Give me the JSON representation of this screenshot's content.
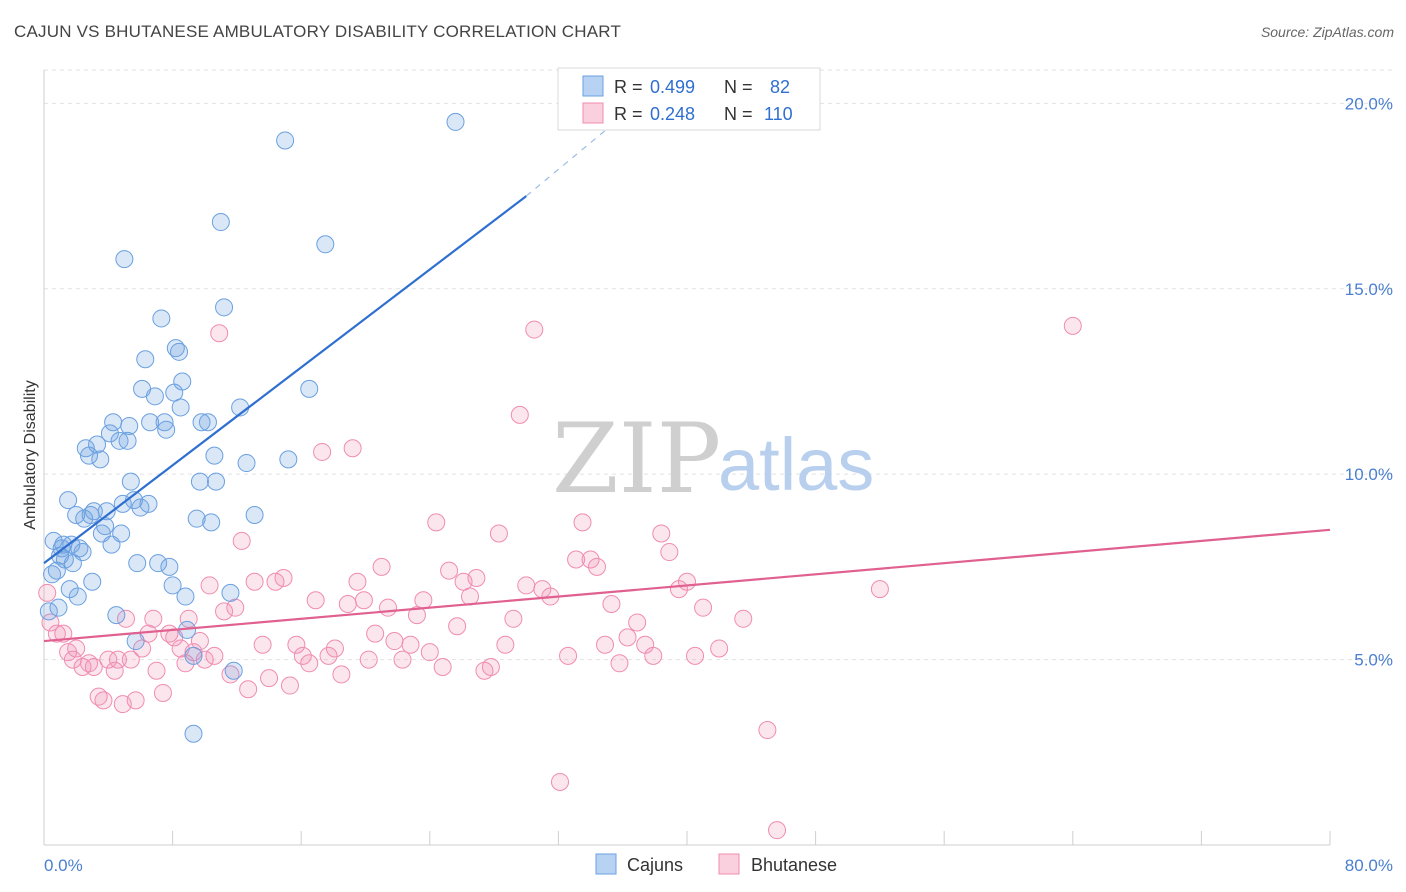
{
  "header": {
    "title": "CAJUN VS BHUTANESE AMBULATORY DISABILITY CORRELATION CHART",
    "source": "Source: ZipAtlas.com"
  },
  "watermark": {
    "zip": "ZIP",
    "atlas": "atlas"
  },
  "legend": {
    "cajun": {
      "r_label": "R =",
      "r_value": "0.499",
      "n_label": "N =",
      "n_value": "82"
    },
    "bhutanese": {
      "r_label": "R =",
      "r_value": "0.248",
      "n_label": "N =",
      "n_value": "110"
    }
  },
  "chart_data": {
    "type": "scatter",
    "title": "CAJUN VS BHUTANESE AMBULATORY DISABILITY CORRELATION CHART",
    "xlabel": "",
    "ylabel": "Ambulatory Disability",
    "xlim": [
      0,
      80
    ],
    "ylim": [
      0,
      20.9
    ],
    "x_tick_labels": [
      "0.0%",
      "80.0%"
    ],
    "y_tick_labels": [
      "5.0%",
      "10.0%",
      "15.0%",
      "20.0%"
    ],
    "y_ticks": [
      5,
      10,
      15,
      20
    ],
    "grid": true,
    "legend_position": "top-center",
    "colors": {
      "cajun": "#6aa0e0",
      "bhutanese": "#f08cb0",
      "cajun_line": "#2f6fd0",
      "bhutanese_line": "#e0608f"
    },
    "series": [
      {
        "name": "Cajuns",
        "r": 0.499,
        "n": 82,
        "trend": {
          "x0": 0.0,
          "y0": 7.6,
          "x1": 30.0,
          "y1": 17.5,
          "dash_to_x": 35.0,
          "dash_to_y": 19.3
        },
        "points": [
          [
            0.3,
            6.3
          ],
          [
            0.5,
            7.3
          ],
          [
            0.6,
            8.2
          ],
          [
            0.8,
            7.4
          ],
          [
            1.0,
            7.8
          ],
          [
            1.1,
            8.0
          ],
          [
            1.3,
            7.7
          ],
          [
            1.5,
            9.3
          ],
          [
            1.6,
            6.9
          ],
          [
            1.7,
            8.1
          ],
          [
            1.8,
            7.6
          ],
          [
            2.0,
            8.9
          ],
          [
            2.1,
            6.7
          ],
          [
            2.2,
            8.0
          ],
          [
            2.4,
            7.9
          ],
          [
            2.6,
            10.7
          ],
          [
            2.8,
            10.5
          ],
          [
            2.9,
            8.9
          ],
          [
            3.0,
            7.1
          ],
          [
            3.1,
            9.0
          ],
          [
            3.3,
            10.8
          ],
          [
            3.5,
            10.4
          ],
          [
            3.6,
            8.4
          ],
          [
            3.8,
            8.6
          ],
          [
            3.9,
            9.0
          ],
          [
            4.1,
            11.1
          ],
          [
            4.2,
            8.1
          ],
          [
            4.3,
            11.4
          ],
          [
            4.5,
            6.2
          ],
          [
            4.7,
            10.9
          ],
          [
            4.8,
            8.4
          ],
          [
            4.9,
            9.2
          ],
          [
            5.0,
            15.8
          ],
          [
            5.2,
            10.9
          ],
          [
            5.3,
            11.3
          ],
          [
            5.4,
            9.8
          ],
          [
            5.6,
            9.3
          ],
          [
            5.7,
            5.5
          ],
          [
            5.8,
            7.6
          ],
          [
            6.0,
            9.1
          ],
          [
            6.1,
            12.3
          ],
          [
            6.3,
            13.1
          ],
          [
            6.5,
            9.2
          ],
          [
            6.6,
            11.4
          ],
          [
            6.9,
            12.1
          ],
          [
            7.1,
            7.6
          ],
          [
            7.3,
            14.2
          ],
          [
            7.5,
            11.4
          ],
          [
            7.6,
            11.2
          ],
          [
            7.8,
            7.5
          ],
          [
            8.0,
            7.0
          ],
          [
            8.1,
            12.2
          ],
          [
            8.2,
            13.4
          ],
          [
            8.4,
            13.3
          ],
          [
            8.5,
            11.8
          ],
          [
            8.6,
            12.5
          ],
          [
            8.8,
            6.7
          ],
          [
            8.9,
            5.8
          ],
          [
            9.3,
            5.1
          ],
          [
            9.5,
            8.8
          ],
          [
            9.7,
            9.8
          ],
          [
            9.8,
            11.4
          ],
          [
            10.2,
            11.4
          ],
          [
            10.4,
            8.7
          ],
          [
            10.6,
            10.5
          ],
          [
            10.7,
            9.8
          ],
          [
            11.0,
            16.8
          ],
          [
            11.2,
            14.5
          ],
          [
            11.6,
            6.8
          ],
          [
            11.8,
            4.7
          ],
          [
            12.2,
            11.8
          ],
          [
            12.6,
            10.3
          ],
          [
            13.1,
            8.9
          ],
          [
            15.0,
            19.0
          ],
          [
            15.2,
            10.4
          ],
          [
            16.5,
            12.3
          ],
          [
            17.5,
            16.2
          ],
          [
            25.6,
            19.5
          ],
          [
            9.3,
            3.0
          ],
          [
            1.2,
            8.1
          ],
          [
            2.5,
            8.8
          ],
          [
            0.9,
            6.4
          ]
        ]
      },
      {
        "name": "Bhutanese",
        "r": 0.248,
        "n": 110,
        "trend": {
          "x0": 0.0,
          "y0": 5.5,
          "x1": 80.0,
          "y1": 8.5
        },
        "points": [
          [
            0.2,
            6.8
          ],
          [
            0.4,
            6.0
          ],
          [
            0.8,
            5.7
          ],
          [
            1.2,
            5.7
          ],
          [
            1.5,
            5.2
          ],
          [
            1.8,
            5.0
          ],
          [
            2.0,
            5.3
          ],
          [
            2.4,
            4.8
          ],
          [
            2.8,
            4.9
          ],
          [
            3.1,
            4.8
          ],
          [
            3.4,
            4.0
          ],
          [
            3.7,
            3.9
          ],
          [
            4.0,
            5.0
          ],
          [
            4.4,
            4.7
          ],
          [
            4.6,
            5.0
          ],
          [
            4.9,
            3.8
          ],
          [
            5.1,
            6.1
          ],
          [
            5.4,
            5.0
          ],
          [
            5.7,
            3.9
          ],
          [
            6.1,
            5.3
          ],
          [
            6.5,
            5.7
          ],
          [
            6.8,
            6.1
          ],
          [
            7.0,
            4.7
          ],
          [
            7.4,
            4.1
          ],
          [
            7.8,
            5.7
          ],
          [
            8.1,
            5.6
          ],
          [
            8.5,
            5.3
          ],
          [
            8.8,
            4.9
          ],
          [
            9.0,
            6.1
          ],
          [
            9.3,
            5.2
          ],
          [
            9.7,
            5.5
          ],
          [
            10.0,
            5.0
          ],
          [
            10.3,
            7.0
          ],
          [
            10.6,
            5.1
          ],
          [
            10.9,
            13.8
          ],
          [
            11.2,
            6.3
          ],
          [
            11.6,
            4.6
          ],
          [
            11.9,
            6.4
          ],
          [
            12.3,
            8.2
          ],
          [
            12.7,
            4.2
          ],
          [
            13.1,
            7.1
          ],
          [
            13.6,
            5.4
          ],
          [
            14.0,
            4.5
          ],
          [
            14.4,
            7.1
          ],
          [
            14.9,
            7.2
          ],
          [
            15.3,
            4.3
          ],
          [
            15.7,
            5.4
          ],
          [
            16.1,
            5.1
          ],
          [
            16.5,
            4.9
          ],
          [
            16.9,
            6.6
          ],
          [
            17.3,
            10.6
          ],
          [
            17.7,
            5.1
          ],
          [
            18.1,
            5.3
          ],
          [
            18.5,
            4.6
          ],
          [
            18.9,
            6.5
          ],
          [
            19.2,
            10.7
          ],
          [
            19.5,
            7.1
          ],
          [
            19.9,
            6.6
          ],
          [
            20.2,
            5.0
          ],
          [
            20.6,
            5.7
          ],
          [
            21.0,
            7.5
          ],
          [
            21.4,
            6.4
          ],
          [
            21.8,
            5.5
          ],
          [
            22.3,
            5.0
          ],
          [
            22.8,
            5.4
          ],
          [
            23.2,
            6.2
          ],
          [
            23.6,
            6.6
          ],
          [
            24.0,
            5.2
          ],
          [
            24.4,
            8.7
          ],
          [
            24.8,
            4.8
          ],
          [
            25.2,
            7.4
          ],
          [
            25.7,
            5.9
          ],
          [
            26.1,
            7.1
          ],
          [
            26.5,
            6.7
          ],
          [
            26.9,
            7.2
          ],
          [
            27.4,
            4.7
          ],
          [
            27.8,
            4.8
          ],
          [
            28.3,
            8.4
          ],
          [
            28.7,
            5.4
          ],
          [
            29.2,
            6.1
          ],
          [
            29.6,
            11.6
          ],
          [
            30.0,
            7.0
          ],
          [
            30.5,
            13.9
          ],
          [
            31.0,
            6.9
          ],
          [
            31.5,
            6.7
          ],
          [
            32.1,
            1.7
          ],
          [
            32.6,
            5.1
          ],
          [
            33.1,
            7.7
          ],
          [
            33.5,
            8.7
          ],
          [
            34.0,
            7.7
          ],
          [
            34.4,
            7.5
          ],
          [
            34.9,
            5.4
          ],
          [
            35.3,
            6.5
          ],
          [
            35.8,
            4.9
          ],
          [
            36.3,
            5.6
          ],
          [
            36.9,
            6.0
          ],
          [
            37.4,
            5.4
          ],
          [
            37.9,
            5.1
          ],
          [
            38.4,
            8.4
          ],
          [
            38.9,
            7.9
          ],
          [
            39.5,
            6.9
          ],
          [
            40.0,
            7.1
          ],
          [
            40.5,
            5.1
          ],
          [
            41.0,
            6.4
          ],
          [
            42.0,
            5.3
          ],
          [
            43.5,
            6.1
          ],
          [
            45.0,
            3.1
          ],
          [
            45.6,
            0.4
          ],
          [
            52.0,
            6.9
          ],
          [
            64.0,
            14.0
          ]
        ]
      }
    ]
  },
  "bottom_legend": {
    "cajuns": "Cajuns",
    "bhutanese": "Bhutanese"
  }
}
